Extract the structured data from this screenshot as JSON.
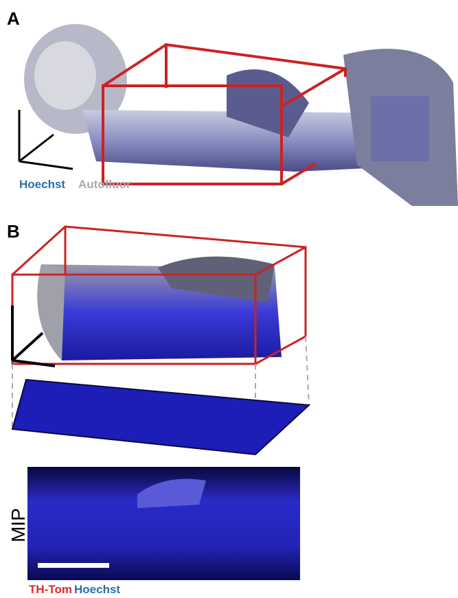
{
  "panel_a": {
    "label": "A",
    "legend": {
      "hoechst": "Hoechst",
      "autofluor": "Autofluor"
    }
  },
  "panel_b": {
    "label": "B",
    "mip_label": "MIP",
    "legend": {
      "th_tom": "TH-Tom",
      "hoechst": "Hoechst"
    }
  }
}
